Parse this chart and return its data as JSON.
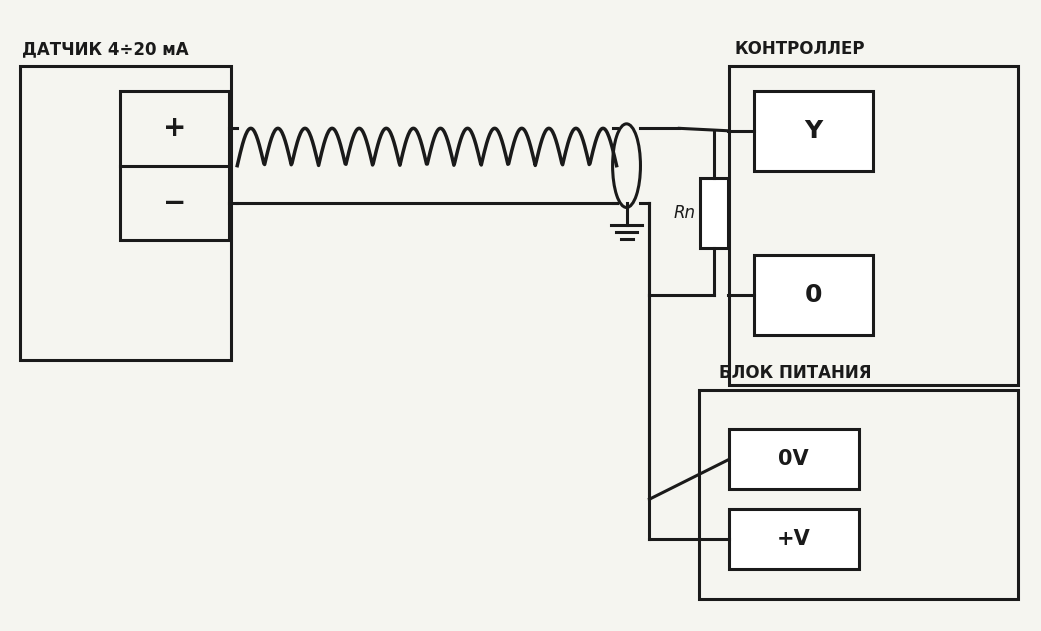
{
  "bg_color": "#f5f5f0",
  "line_color": "#1a1a1a",
  "line_width": 2.2,
  "fig_width": 10.41,
  "fig_height": 6.31,
  "sensor_label": "ДАТЧИК 4÷20 мА",
  "controller_label": "КОНТРОЛЛЕР",
  "psu_label": "БЛОК ПИТАНИЯ",
  "terminal_Y": "Y",
  "terminal_0": "0",
  "terminal_0V": "0V",
  "terminal_pV": "+V",
  "resistor_label": "Rn",
  "font_size_label": 12,
  "font_size_terminal": 15,
  "font_size_plus_minus": 20
}
